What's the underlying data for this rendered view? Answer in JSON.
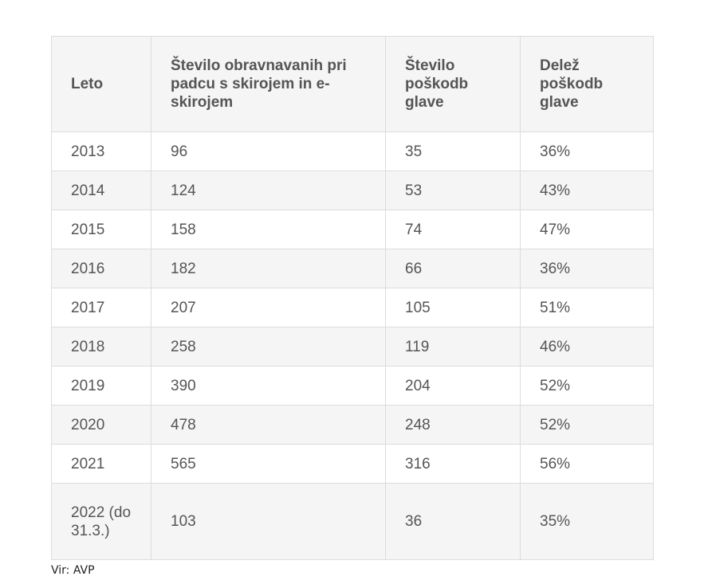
{
  "table": {
    "headers": [
      "Leto",
      "Število obravnavanih pri padcu s skirojem in e-skirojem",
      "Število poškodb glave",
      "Delež poškodb glave"
    ],
    "rows": [
      [
        "2013",
        "96",
        "35",
        "36%"
      ],
      [
        "2014",
        "124",
        "53",
        "43%"
      ],
      [
        "2015",
        "158",
        "74",
        "47%"
      ],
      [
        "2016",
        "182",
        "66",
        "36%"
      ],
      [
        "2017",
        "207",
        "105",
        "51%"
      ],
      [
        "2018",
        "258",
        "119",
        "46%"
      ],
      [
        "2019",
        "390",
        "204",
        "52%"
      ],
      [
        "2020",
        "478",
        "248",
        "52%"
      ],
      [
        "2021",
        "565",
        "316",
        "56%"
      ],
      [
        "2022 (do 31.3.)",
        "103",
        "36",
        "35%"
      ]
    ]
  },
  "source": "Vir: AVP"
}
